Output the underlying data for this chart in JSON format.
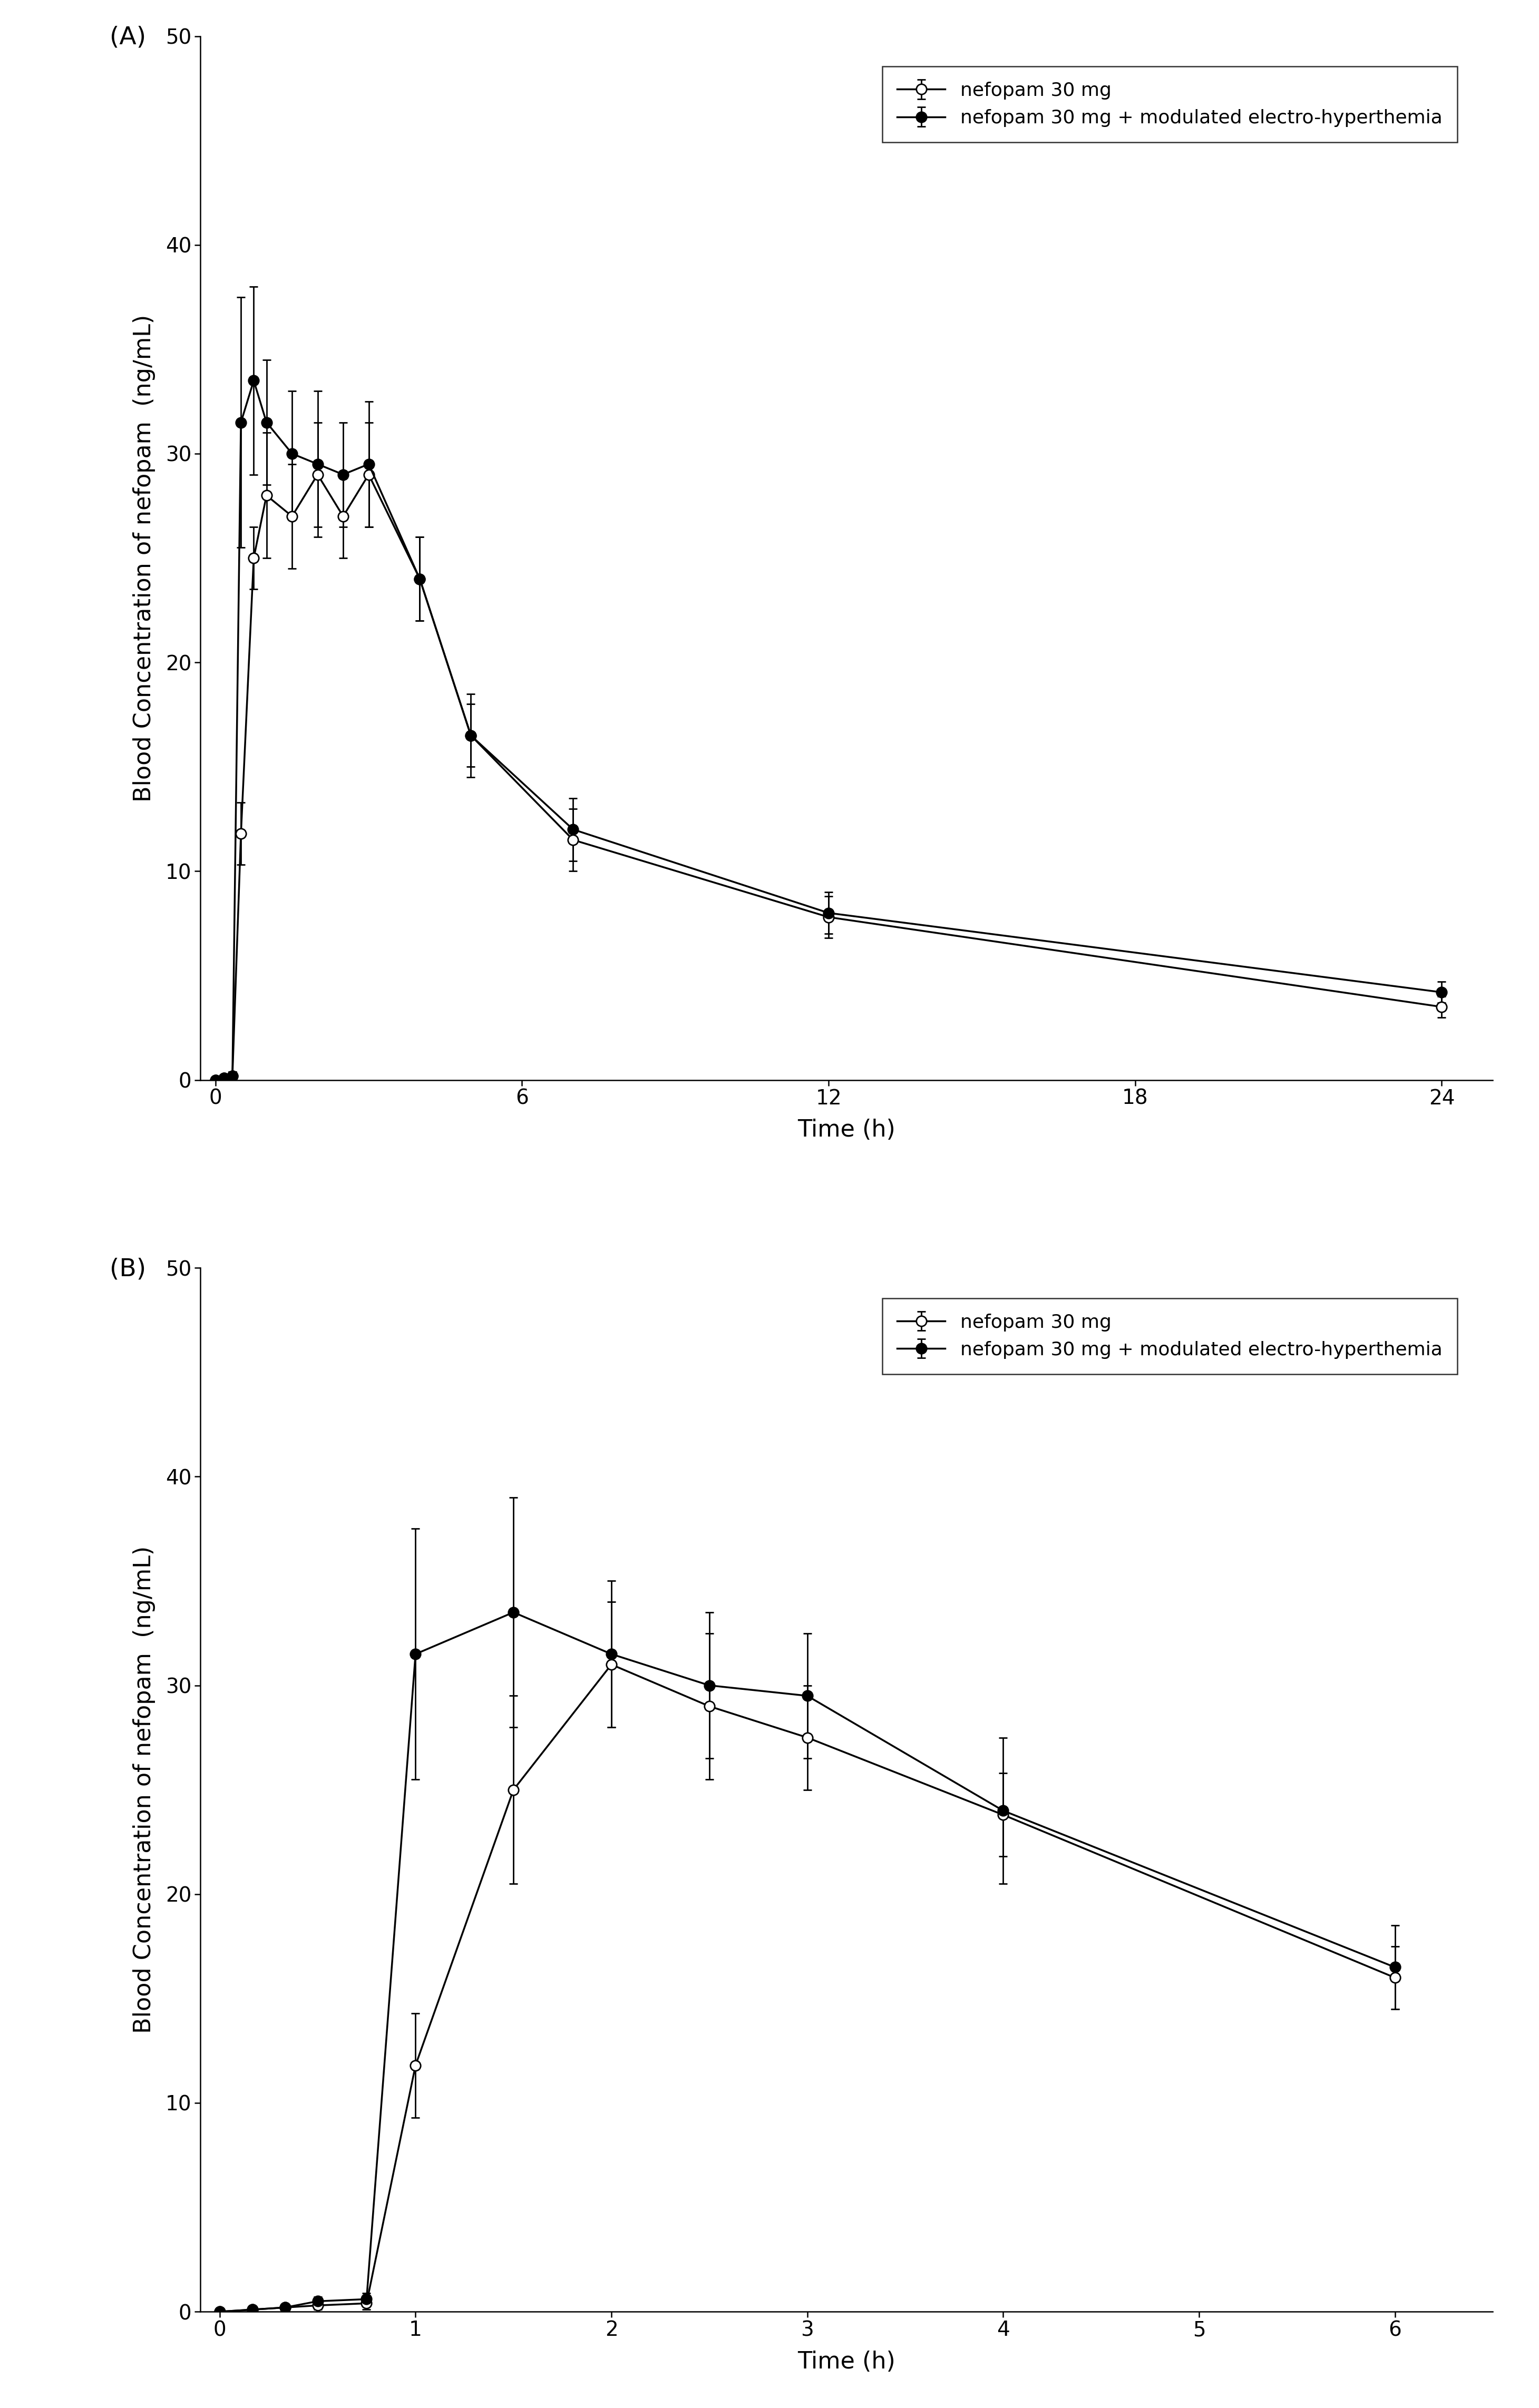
{
  "panel_A": {
    "title_label": "(A)",
    "nefopam_alone": {
      "time": [
        0,
        0.167,
        0.333,
        0.5,
        0.75,
        1.0,
        1.5,
        2.0,
        2.5,
        3.0,
        4.0,
        5.0,
        7.0,
        12.0,
        24.0
      ],
      "mean": [
        0,
        0.1,
        0.2,
        11.8,
        25.0,
        28.0,
        27.0,
        29.0,
        27.0,
        29.0,
        24.0,
        16.5,
        11.5,
        7.8,
        3.5
      ],
      "se": [
        0,
        0.1,
        0.2,
        1.5,
        1.5,
        3.0,
        2.5,
        2.5,
        2.0,
        2.5,
        2.0,
        2.0,
        1.5,
        1.0,
        0.5
      ]
    },
    "nefopam_meh": {
      "time": [
        0,
        0.167,
        0.333,
        0.5,
        0.75,
        1.0,
        1.5,
        2.0,
        2.5,
        3.0,
        4.0,
        5.0,
        7.0,
        12.0,
        24.0
      ],
      "mean": [
        0,
        0.1,
        0.2,
        31.5,
        33.5,
        31.5,
        30.0,
        29.5,
        29.0,
        29.5,
        24.0,
        16.5,
        12.0,
        8.0,
        4.2
      ],
      "se": [
        0,
        0.1,
        0.2,
        6.0,
        4.5,
        3.0,
        3.0,
        3.5,
        2.5,
        3.0,
        2.0,
        1.5,
        1.5,
        1.0,
        0.5
      ]
    },
    "xlabel": "Time (h)",
    "ylabel": "Blood Concentration of nefopam  (ng/mL)",
    "xlim": [
      -0.3,
      25
    ],
    "ylim": [
      0,
      50
    ],
    "xticks": [
      0,
      6,
      12,
      18,
      24
    ],
    "yticks": [
      0,
      10,
      20,
      30,
      40,
      50
    ]
  },
  "panel_B": {
    "title_label": "(B)",
    "nefopam_alone": {
      "time": [
        0,
        0.167,
        0.333,
        0.5,
        0.75,
        1.0,
        1.5,
        2.0,
        2.5,
        3.0,
        4.0,
        6.0
      ],
      "mean": [
        0,
        0.1,
        0.2,
        0.3,
        0.4,
        11.8,
        25.0,
        31.0,
        29.0,
        27.5,
        23.8,
        16.0
      ],
      "se": [
        0,
        0.1,
        0.1,
        0.2,
        0.3,
        2.5,
        4.5,
        3.0,
        3.5,
        2.5,
        2.0,
        1.5
      ]
    },
    "nefopam_meh": {
      "time": [
        0,
        0.167,
        0.333,
        0.5,
        0.75,
        1.0,
        1.5,
        2.0,
        2.5,
        3.0,
        4.0,
        6.0
      ],
      "mean": [
        0,
        0.1,
        0.2,
        0.5,
        0.6,
        31.5,
        33.5,
        31.5,
        30.0,
        29.5,
        24.0,
        16.5
      ],
      "se": [
        0,
        0.1,
        0.1,
        0.2,
        0.3,
        6.0,
        5.5,
        3.5,
        3.5,
        3.0,
        3.5,
        2.0
      ]
    },
    "xlabel": "Time (h)",
    "ylabel": "Blood Concentration of nefopam  (ng/mL)",
    "xlim": [
      -0.1,
      6.5
    ],
    "ylim": [
      0,
      50
    ],
    "xticks": [
      0,
      1,
      2,
      3,
      4,
      5,
      6
    ],
    "yticks": [
      0,
      10,
      20,
      30,
      40,
      50
    ]
  },
  "legend_labels": [
    "nefopam 30 mg",
    "nefopam 30 mg + modulated electro-hyperthemia"
  ],
  "line_color": "#000000",
  "markersize": 14,
  "linewidth": 2.5,
  "capsize": 6,
  "elinewidth": 2.0,
  "font_size_label": 32,
  "font_size_tick": 28,
  "font_size_legend": 26,
  "font_size_panel_label": 34
}
